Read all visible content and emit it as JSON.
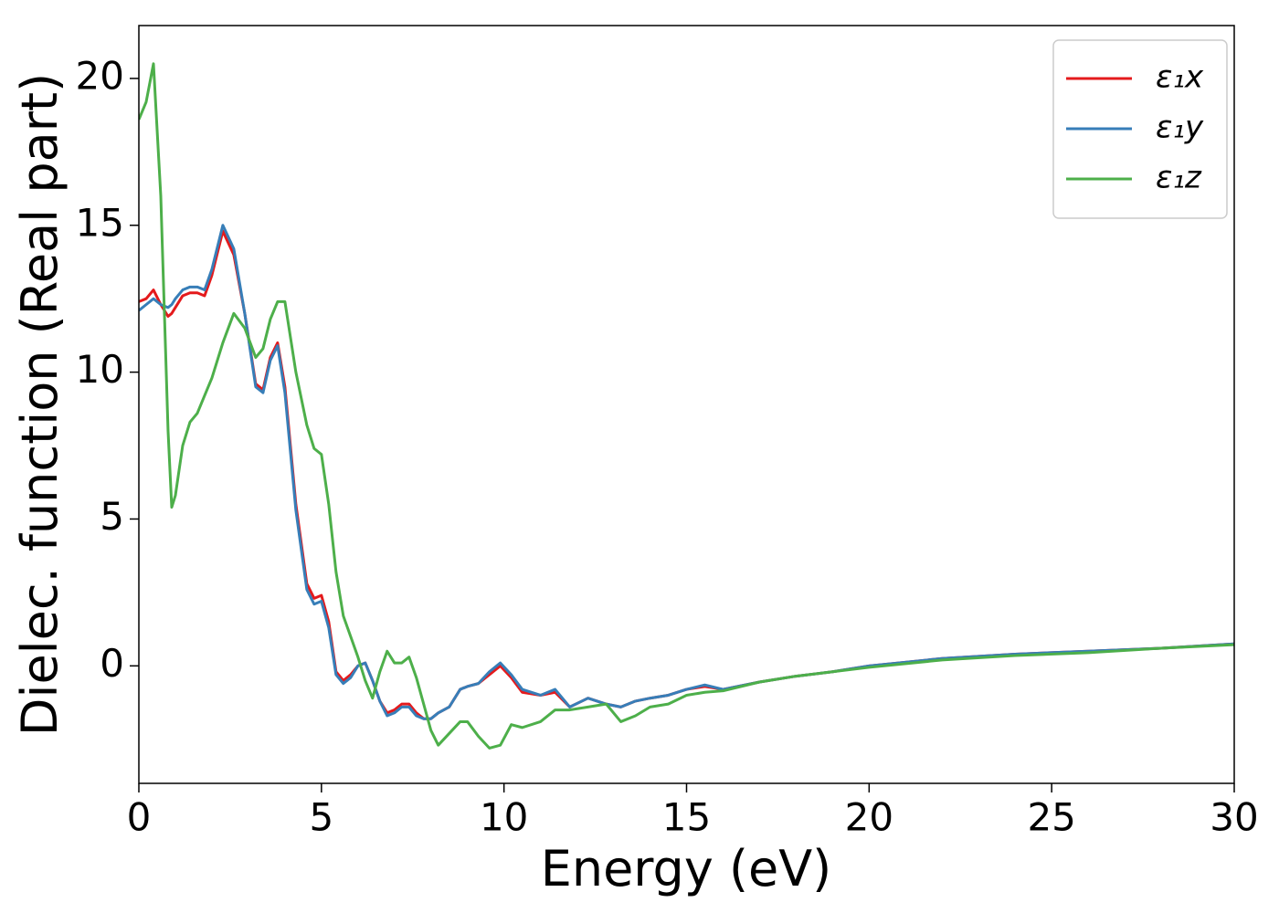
{
  "chart_data": {
    "type": "line",
    "xlabel": "Energy (eV)",
    "ylabel": "Dielec. function (Real part)",
    "xlim": [
      0,
      30
    ],
    "ylim": [
      -4,
      21.8
    ],
    "xticks": [
      0,
      5,
      10,
      15,
      20,
      25,
      30
    ],
    "yticks": [
      0,
      5,
      10,
      15,
      20
    ],
    "grid": false,
    "legend": "upper right",
    "x": [
      0,
      0.2,
      0.4,
      0.6,
      0.8,
      0.9,
      1.0,
      1.2,
      1.4,
      1.6,
      1.8,
      2.0,
      2.3,
      2.6,
      2.9,
      3.2,
      3.4,
      3.6,
      3.8,
      4.0,
      4.3,
      4.6,
      4.8,
      5.0,
      5.2,
      5.4,
      5.6,
      5.8,
      6.0,
      6.2,
      6.4,
      6.6,
      6.8,
      7.0,
      7.2,
      7.4,
      7.6,
      7.8,
      8.0,
      8.2,
      8.5,
      8.8,
      9.0,
      9.3,
      9.6,
      9.9,
      10.2,
      10.5,
      11.0,
      11.4,
      11.8,
      12.3,
      12.8,
      13.2,
      13.6,
      14.0,
      14.5,
      15.0,
      15.5,
      16.0,
      17,
      18,
      19,
      20,
      22,
      24,
      26,
      28,
      30
    ],
    "series": [
      {
        "name": "ε₁x",
        "color": "#e41a1c",
        "values": [
          12.4,
          12.5,
          12.8,
          12.3,
          11.9,
          12.0,
          12.2,
          12.6,
          12.7,
          12.7,
          12.6,
          13.3,
          14.8,
          14.0,
          12.0,
          9.6,
          9.4,
          10.5,
          11.0,
          9.5,
          5.5,
          2.8,
          2.3,
          2.4,
          1.5,
          -0.2,
          -0.5,
          -0.3,
          0.0,
          0.1,
          -0.5,
          -1.2,
          -1.6,
          -1.5,
          -1.3,
          -1.3,
          -1.6,
          -1.8,
          -1.8,
          -1.6,
          -1.4,
          -0.8,
          -0.7,
          -0.6,
          -0.3,
          0.0,
          -0.4,
          -0.9,
          -1.0,
          -0.9,
          -1.4,
          -1.1,
          -1.3,
          -1.4,
          -1.2,
          -1.1,
          -1.0,
          -0.8,
          -0.7,
          -0.8,
          -0.55,
          -0.35,
          -0.2,
          0.0,
          0.25,
          0.4,
          0.5,
          0.6,
          0.75
        ]
      },
      {
        "name": "ε₁y",
        "color": "#377eb8",
        "values": [
          12.1,
          12.3,
          12.5,
          12.3,
          12.2,
          12.3,
          12.5,
          12.8,
          12.9,
          12.9,
          12.8,
          13.5,
          15.0,
          14.2,
          12.0,
          9.5,
          9.3,
          10.4,
          10.9,
          9.3,
          5.3,
          2.6,
          2.1,
          2.2,
          1.3,
          -0.3,
          -0.6,
          -0.4,
          0.0,
          0.1,
          -0.5,
          -1.2,
          -1.7,
          -1.6,
          -1.4,
          -1.4,
          -1.7,
          -1.8,
          -1.8,
          -1.6,
          -1.4,
          -0.8,
          -0.7,
          -0.6,
          -0.2,
          0.1,
          -0.3,
          -0.8,
          -1.0,
          -0.8,
          -1.4,
          -1.1,
          -1.3,
          -1.4,
          -1.2,
          -1.1,
          -1.0,
          -0.8,
          -0.65,
          -0.8,
          -0.55,
          -0.35,
          -0.2,
          0.0,
          0.25,
          0.4,
          0.5,
          0.6,
          0.75
        ]
      },
      {
        "name": "ε₁z",
        "color": "#4daf4a",
        "values": [
          18.6,
          19.2,
          20.5,
          16.0,
          8.0,
          5.4,
          5.8,
          7.5,
          8.3,
          8.6,
          9.2,
          9.8,
          11.0,
          12.0,
          11.5,
          10.5,
          10.8,
          11.8,
          12.4,
          12.4,
          10.0,
          8.2,
          7.4,
          7.2,
          5.5,
          3.2,
          1.7,
          1.0,
          0.3,
          -0.5,
          -1.1,
          -0.2,
          0.5,
          0.1,
          0.1,
          0.3,
          -0.4,
          -1.3,
          -2.2,
          -2.7,
          -2.3,
          -1.9,
          -1.9,
          -2.4,
          -2.8,
          -2.7,
          -2.0,
          -2.1,
          -1.9,
          -1.5,
          -1.5,
          -1.4,
          -1.3,
          -1.9,
          -1.7,
          -1.4,
          -1.3,
          -1.0,
          -0.9,
          -0.85,
          -0.55,
          -0.35,
          -0.2,
          -0.05,
          0.2,
          0.35,
          0.45,
          0.6,
          0.72
        ]
      }
    ]
  }
}
